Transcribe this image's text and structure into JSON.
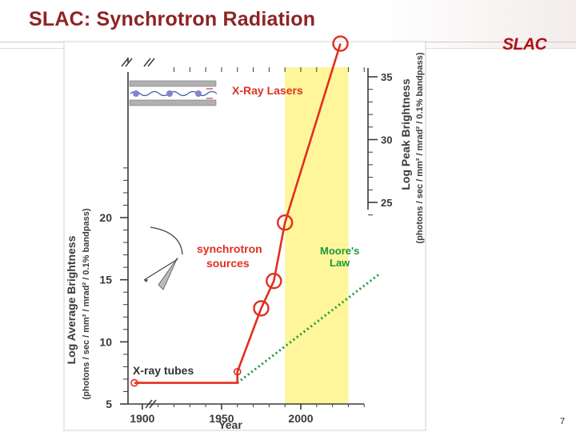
{
  "slide": {
    "title": "SLAC: Synchrotron Radiation",
    "logo": "SLAC",
    "page_number": "7"
  },
  "colors": {
    "title": "#8e2323",
    "logo": "#b0101a",
    "trend_line": "#e03020",
    "moores_law": "#1a9a3a",
    "highlight_band": "#fff59a",
    "axis_text": "#3a3a3a"
  },
  "chart_data": {
    "type": "line",
    "xlabel": "Year",
    "ylabel_left": "Log Average Brightness",
    "ylabel_left_units": "(photons / sec / mm² / mrad² / 0.1% bandpass)",
    "ylabel_right": "Log Peak Brightness",
    "ylabel_right_units": "(photons / sec / mm² / mrad² / 0.1% bandpass)",
    "x_ticks": [
      "1900",
      "1950",
      "2000"
    ],
    "y_left_ticks": [
      "5",
      "10",
      "15",
      "20"
    ],
    "y_right_ticks": [
      "25",
      "30",
      "35"
    ],
    "highlight_x_range": [
      1990,
      2030
    ],
    "series": [
      {
        "values": [
          {
            "x": 1895,
            "y": 6.7
          },
          {
            "x": 1960,
            "y": 6.7
          },
          {
            "x": 1960,
            "y": 7.6
          },
          {
            "x": 1975,
            "y": 12.7
          },
          {
            "x": 1983,
            "y": 14.9
          },
          {
            "x": 1990,
            "y": 19.6
          },
          {
            "x": 2025,
            "y": 34.0
          }
        ],
        "markers": [
          {
            "x": 1895,
            "y": 6.7,
            "size": "small"
          },
          {
            "x": 1960,
            "y": 7.6,
            "size": "small"
          },
          {
            "x": 1975,
            "y": 12.7,
            "size": "large"
          },
          {
            "x": 1983,
            "y": 14.9,
            "size": "large"
          },
          {
            "x": 1990,
            "y": 19.6,
            "size": "large"
          },
          {
            "x": 2025,
            "y": 34.0,
            "size": "large"
          }
        ]
      },
      {
        "name": "Moore's Law",
        "values": [
          {
            "x": 1960,
            "y": 6.7
          },
          {
            "x": 2050,
            "y": 15.5
          }
        ]
      }
    ],
    "annotations": {
      "xray_lasers": "X-Ray Lasers",
      "synchrotron_line1": "synchrotron",
      "synchrotron_line2": "sources",
      "moores_line1": "Moore's",
      "moores_line2": "Law",
      "xray_tubes": "X-ray tubes"
    }
  }
}
